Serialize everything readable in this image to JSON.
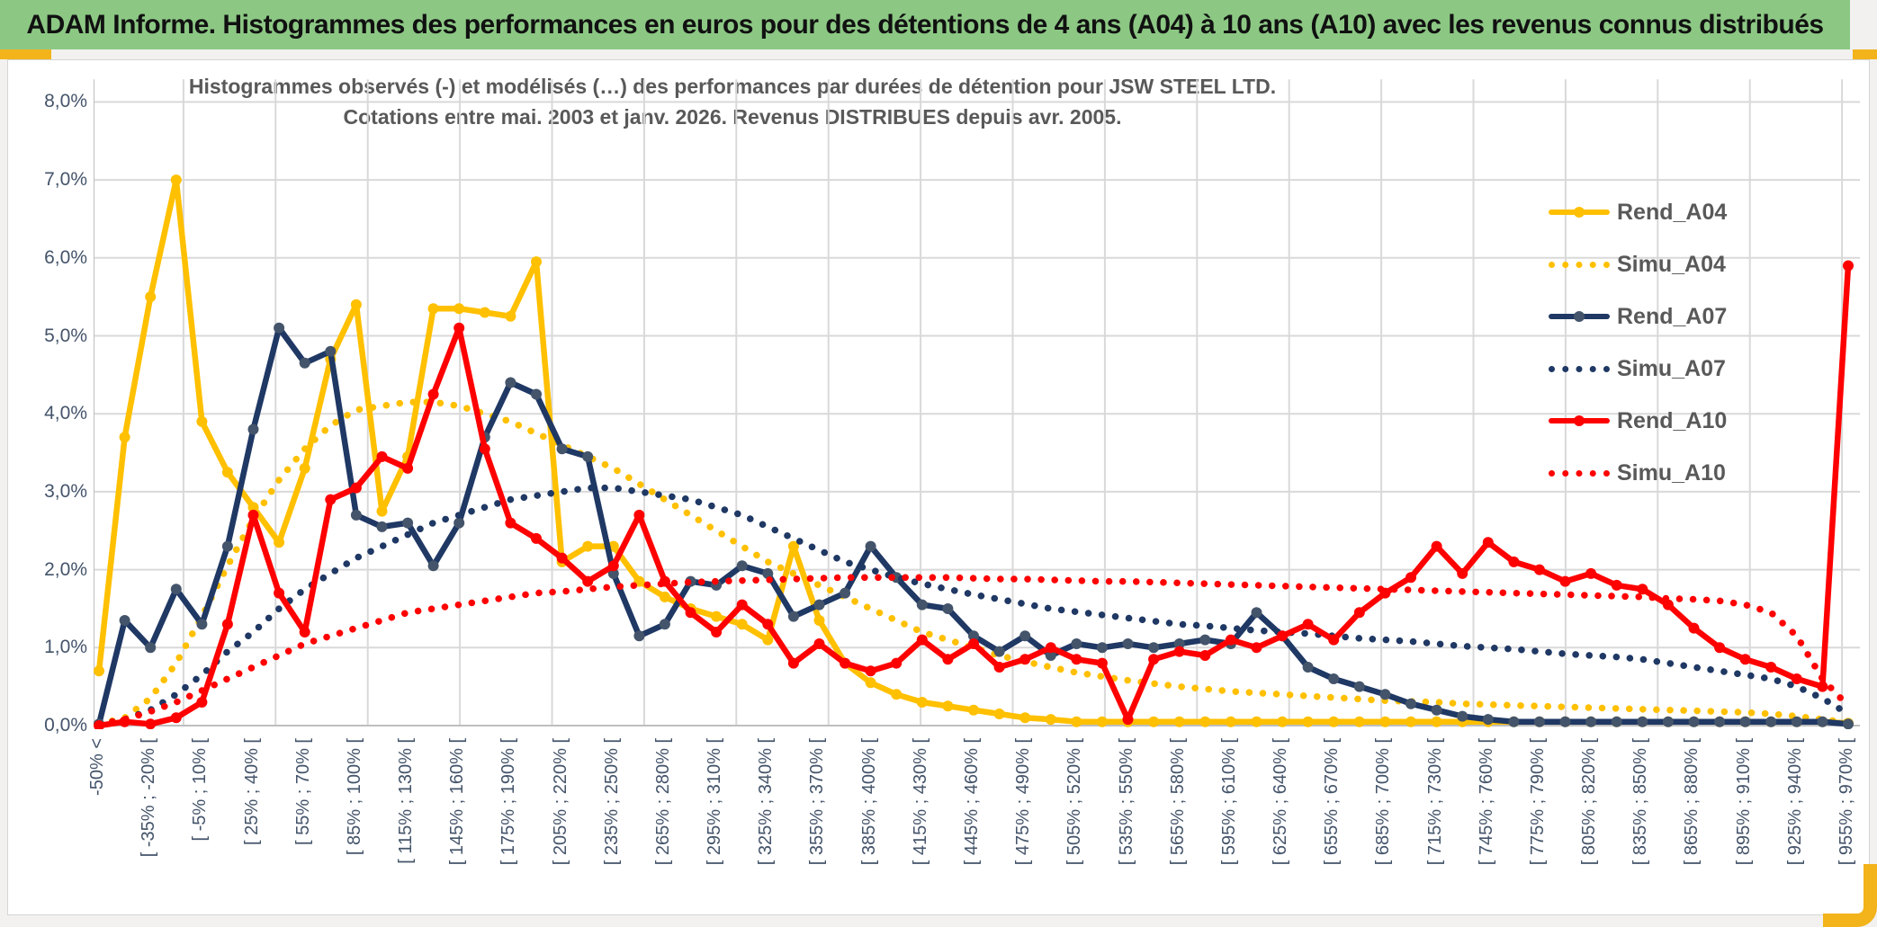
{
  "banner": {
    "title": "ADAM Informe. Histogrammes des performances en euros pour des détentions de 4 ans (A04) à 10 ans (A10) avec les revenus connus distribués",
    "background_color": "#8cc884",
    "accent_color": "#f2b31b"
  },
  "chart_data": {
    "type": "line",
    "title_line1": "Histogrammes observés (-) et modélisés (…) des performances par durées de détention pour JSW STEEL LTD.",
    "title_line2": "Cotations entre mai. 2003 et janv. 2026. Revenus DISTRIBUES depuis avr. 2005.",
    "xlabel": "",
    "ylabel": "",
    "ylim": [
      0,
      8.3
    ],
    "grid": true,
    "legend_position": "right-inside",
    "y_ticks": [
      "0,0%",
      "1,0%",
      "2,0%",
      "3,0%",
      "4,0%",
      "5,0%",
      "6,0%",
      "7,0%",
      "8,0%"
    ],
    "y_tick_values": [
      0,
      1,
      2,
      3,
      4,
      5,
      6,
      7,
      8
    ],
    "gridline_color": "#d9d9d9",
    "axis_color": "#bfbfbf",
    "tick_label_color": "#44546a",
    "title_color": "#595959",
    "categories": [
      "-50% <",
      "",
      "[ -35% ; -20% [",
      "",
      "[ -5% ; 10% [",
      "",
      "[ 25% ; 40% [",
      "",
      "[ 55% ; 70% [",
      "",
      "[ 85% ; 100% [",
      "",
      "[ 115% ; 130% [",
      "",
      "[ 145% ; 160% [",
      "",
      "[ 175% ; 190% [",
      "",
      "[ 205% ; 220% [",
      "",
      "[ 235% ; 250% [",
      "",
      "[ 265% ; 280% [",
      "",
      "[ 295% ; 310% [",
      "",
      "[ 325% ; 340% [",
      "",
      "[ 355% ; 370% [",
      "",
      "[ 385% ; 400% [",
      "",
      "[ 415% ; 430% [",
      "",
      "[ 445% ; 460% [",
      "",
      "[ 475% ; 490% [",
      "",
      "[ 505% ; 520% [",
      "",
      "[ 535% ; 550% [",
      "",
      "[ 565% ; 580% [",
      "",
      "[ 595% ; 610% [",
      "",
      "[ 625% ; 640% [",
      "",
      "[ 655% ; 670% [",
      "",
      "[ 685% ; 700% [",
      "",
      "[ 715% ; 730% [",
      "",
      "[ 745% ; 760% [",
      "",
      "[ 775% ; 790% [",
      "",
      "[ 805% ; 820% [",
      "",
      "[ 835% ; 850% [",
      "",
      "[ 865% ; 880% [",
      "",
      "[ 895% ; 910% [",
      "",
      "[ 925% ; 940% [",
      "",
      "[ 955% ; 970% ["
    ],
    "series": [
      {
        "name": "Rend_A04",
        "style": "solid",
        "color": "#ffc000",
        "marker_color": "#ffc000",
        "values": [
          0.7,
          3.7,
          5.5,
          7.0,
          3.9,
          3.25,
          2.8,
          2.35,
          3.3,
          4.7,
          5.4,
          2.75,
          3.45,
          5.35,
          5.35,
          5.3,
          5.25,
          5.95,
          2.1,
          2.3,
          2.3,
          1.85,
          1.65,
          1.5,
          1.4,
          1.3,
          1.1,
          2.3,
          1.35,
          0.8,
          0.55,
          0.4,
          0.3,
          0.25,
          0.2,
          0.15,
          0.1,
          0.08,
          0.05,
          0.05,
          0.05,
          0.05,
          0.05,
          0.05,
          0.05,
          0.05,
          0.05,
          0.05,
          0.05,
          0.05,
          0.05,
          0.05,
          0.05,
          0.05,
          0.05,
          0.05,
          0.05,
          0.05,
          0.05,
          0.05,
          0.05,
          0.05,
          0.05,
          0.05,
          0.05,
          0.05,
          0.05,
          0.05,
          0.03
        ]
      },
      {
        "name": "Simu_A04",
        "style": "dotted",
        "color": "#ffc000",
        "marker_color": "#ffc000",
        "values": [
          0.02,
          0.1,
          0.35,
          0.8,
          1.4,
          2.05,
          2.65,
          3.15,
          3.55,
          3.85,
          4.05,
          4.1,
          4.15,
          4.15,
          4.1,
          4.0,
          3.9,
          3.75,
          3.6,
          3.45,
          3.3,
          3.1,
          2.9,
          2.7,
          2.5,
          2.3,
          2.1,
          1.95,
          1.8,
          1.65,
          1.5,
          1.35,
          1.2,
          1.1,
          1.0,
          0.9,
          0.82,
          0.75,
          0.68,
          0.63,
          0.58,
          0.54,
          0.5,
          0.47,
          0.44,
          0.42,
          0.4,
          0.38,
          0.36,
          0.34,
          0.32,
          0.31,
          0.3,
          0.28,
          0.27,
          0.26,
          0.25,
          0.24,
          0.23,
          0.22,
          0.21,
          0.2,
          0.19,
          0.18,
          0.17,
          0.15,
          0.12,
          0.08,
          0.04
        ]
      },
      {
        "name": "Rend_A07",
        "style": "solid",
        "color": "#1f3864",
        "marker_color": "#44546a",
        "values": [
          0.02,
          1.35,
          1.0,
          1.75,
          1.3,
          2.3,
          3.8,
          5.1,
          4.65,
          4.8,
          2.7,
          2.55,
          2.6,
          2.05,
          2.6,
          3.7,
          4.4,
          4.25,
          3.55,
          3.45,
          1.95,
          1.15,
          1.3,
          1.85,
          1.8,
          2.05,
          1.95,
          1.4,
          1.55,
          1.7,
          2.3,
          1.9,
          1.55,
          1.5,
          1.15,
          0.95,
          1.15,
          0.9,
          1.05,
          1.0,
          1.05,
          1.0,
          1.05,
          1.1,
          1.05,
          1.45,
          1.15,
          0.75,
          0.6,
          0.5,
          0.4,
          0.28,
          0.2,
          0.12,
          0.08,
          0.05,
          0.05,
          0.05,
          0.05,
          0.05,
          0.05,
          0.05,
          0.05,
          0.05,
          0.05,
          0.05,
          0.05,
          0.05,
          0.02
        ]
      },
      {
        "name": "Simu_A07",
        "style": "dotted",
        "color": "#1f3864",
        "marker_color": "#1f3864",
        "values": [
          0.02,
          0.08,
          0.2,
          0.4,
          0.65,
          0.95,
          1.2,
          1.5,
          1.75,
          1.95,
          2.15,
          2.3,
          2.45,
          2.6,
          2.7,
          2.8,
          2.9,
          2.95,
          3.0,
          3.05,
          3.05,
          3.0,
          2.95,
          2.9,
          2.8,
          2.7,
          2.55,
          2.4,
          2.25,
          2.1,
          2.0,
          1.9,
          1.82,
          1.75,
          1.68,
          1.62,
          1.56,
          1.5,
          1.46,
          1.42,
          1.38,
          1.34,
          1.3,
          1.28,
          1.25,
          1.22,
          1.2,
          1.18,
          1.15,
          1.12,
          1.1,
          1.08,
          1.05,
          1.02,
          1.0,
          0.98,
          0.95,
          0.92,
          0.9,
          0.88,
          0.85,
          0.8,
          0.75,
          0.7,
          0.65,
          0.6,
          0.5,
          0.35,
          0.15
        ]
      },
      {
        "name": "Rend_A10",
        "style": "solid",
        "color": "#ff0000",
        "marker_color": "#ff0000",
        "values": [
          0.0,
          0.05,
          0.02,
          0.1,
          0.3,
          1.3,
          2.7,
          1.7,
          1.2,
          2.9,
          3.05,
          3.45,
          3.3,
          4.25,
          5.1,
          3.55,
          2.6,
          2.4,
          2.15,
          1.85,
          2.05,
          2.7,
          1.85,
          1.45,
          1.2,
          1.55,
          1.3,
          0.8,
          1.05,
          0.8,
          0.7,
          0.8,
          1.1,
          0.85,
          1.05,
          0.75,
          0.85,
          1.0,
          0.85,
          0.8,
          0.08,
          0.85,
          0.95,
          0.9,
          1.1,
          1.0,
          1.15,
          1.3,
          1.1,
          1.45,
          1.7,
          1.9,
          2.3,
          1.95,
          2.35,
          2.1,
          2.0,
          1.85,
          1.95,
          1.8,
          1.75,
          1.55,
          1.25,
          1.0,
          0.85,
          0.75,
          0.6,
          0.5,
          5.9
        ]
      },
      {
        "name": "Simu_A10",
        "style": "dotted",
        "color": "#ff0000",
        "marker_color": "#ff0000",
        "values": [
          0.02,
          0.08,
          0.18,
          0.3,
          0.45,
          0.6,
          0.75,
          0.9,
          1.05,
          1.15,
          1.25,
          1.35,
          1.45,
          1.5,
          1.55,
          1.6,
          1.65,
          1.7,
          1.72,
          1.75,
          1.78,
          1.8,
          1.82,
          1.84,
          1.85,
          1.86,
          1.87,
          1.88,
          1.89,
          1.9,
          1.9,
          1.9,
          1.9,
          1.9,
          1.89,
          1.88,
          1.88,
          1.87,
          1.86,
          1.85,
          1.85,
          1.84,
          1.83,
          1.82,
          1.81,
          1.8,
          1.79,
          1.78,
          1.77,
          1.76,
          1.75,
          1.74,
          1.73,
          1.72,
          1.71,
          1.7,
          1.69,
          1.68,
          1.67,
          1.66,
          1.65,
          1.63,
          1.62,
          1.6,
          1.55,
          1.45,
          1.15,
          0.6,
          0.25
        ]
      }
    ]
  }
}
